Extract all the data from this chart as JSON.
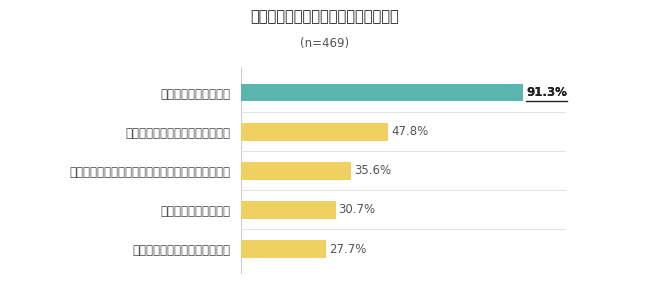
{
  "title": "今後もテレワークをしたいと思う理由",
  "subtitle": "(n=469)",
  "categories": [
    "通勤しなくて良いから",
    "時間配分の自由度が高くなるから",
    "趣味など仕事以外のことに使える時間が増えるから",
    "仕事に集中できるから",
    "人間関係の煩わしさがないから"
  ],
  "values": [
    91.3,
    47.8,
    35.6,
    30.7,
    27.7
  ],
  "labels": [
    "91.3%",
    "47.8%",
    "35.6%",
    "30.7%",
    "27.7%"
  ],
  "bar_colors": [
    "#5ab5ae",
    "#f0d060",
    "#f0d060",
    "#f0d060",
    "#f0d060"
  ],
  "background_color": "#ffffff",
  "xlim": [
    0,
    105
  ],
  "title_fontsize": 10.5,
  "subtitle_fontsize": 8.5,
  "value_label_fontsize": 8.5,
  "category_fontsize": 8.5,
  "label_color": "#444444",
  "value_label_color_first": "#222222",
  "value_label_color": "#555555"
}
